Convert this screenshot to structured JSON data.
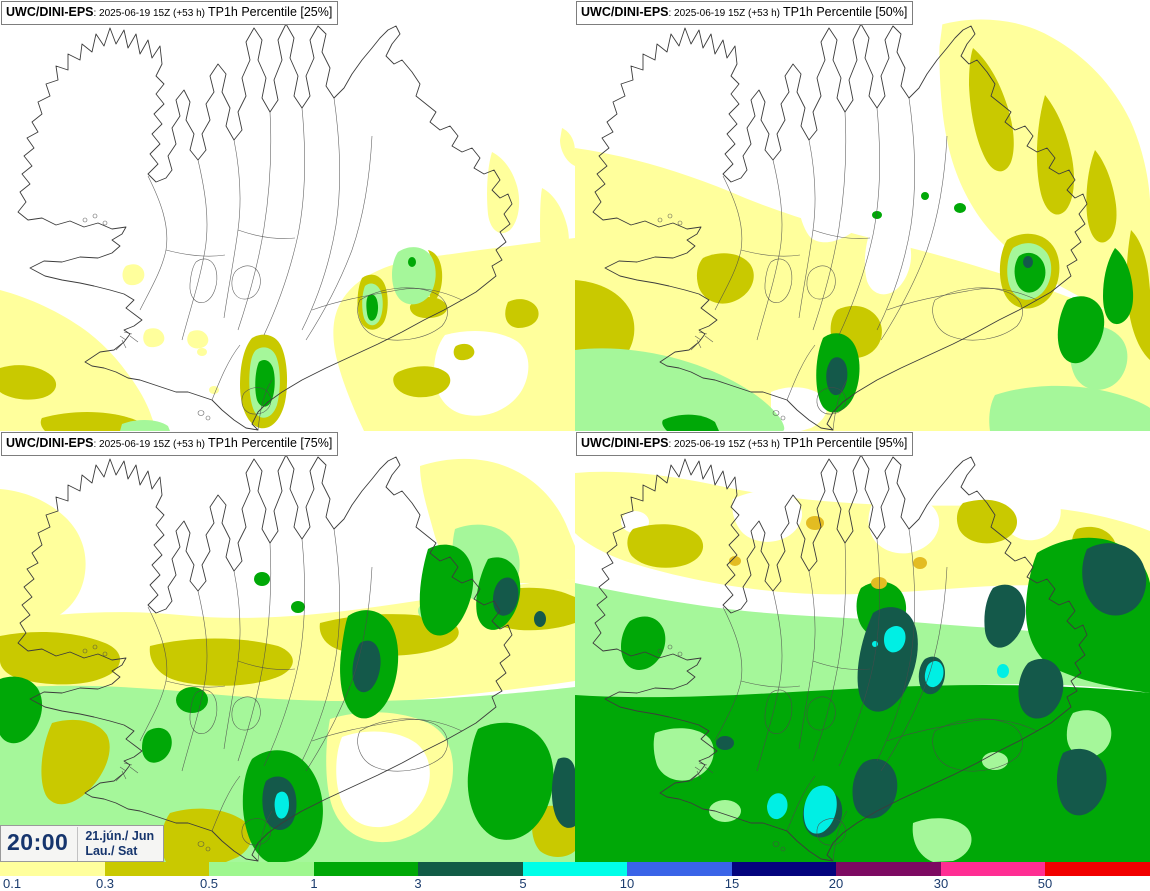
{
  "panels": [
    {
      "model": "UWC/DINI-EPS",
      "run": ": 2025-06-19 15Z (+53 h)",
      "product": "TP1h Percentile [25%]"
    },
    {
      "model": "UWC/DINI-EPS",
      "run": ": 2025-06-19 15Z (+53 h)",
      "product": "TP1h Percentile [50%]"
    },
    {
      "model": "UWC/DINI-EPS",
      "run": ": 2025-06-19 15Z (+53 h)",
      "product": "TP1h Percentile [75%]"
    },
    {
      "model": "UWC/DINI-EPS",
      "run": ": 2025-06-19 15Z (+53 h)",
      "product": "TP1h Percentile [95%]"
    }
  ],
  "timebox": {
    "time": "20:00",
    "date_local": "21.jún./ Jun",
    "date_en": "Lau./ Sat"
  },
  "colorbar": {
    "label_color": "#1b3c6e",
    "stops": [
      {
        "label": "0.1",
        "color": "#FFFF9C"
      },
      {
        "label": "0.3",
        "color": "#C9C900"
      },
      {
        "label": "0.5",
        "color": "#9EF78E"
      },
      {
        "label": "1",
        "color": "#00A807"
      },
      {
        "label": "3",
        "color": "#115C46"
      },
      {
        "label": "5",
        "color": "#00FFE8"
      },
      {
        "label": "10",
        "color": "#3A64E8"
      },
      {
        "label": "15",
        "color": "#04047E"
      },
      {
        "label": "20",
        "color": "#7D0A62"
      },
      {
        "label": "30",
        "color": "#FF2E93"
      },
      {
        "label": "50",
        "color": "#F20000"
      }
    ]
  },
  "palette": {
    "y1": "#FFFF9C",
    "y2": "#C9C900",
    "gd": "#E3BC22",
    "g1": "#A5F79A",
    "g2": "#00A807",
    "g3": "#14594A",
    "cy": "#00EFE4",
    "wh": "#FFFFFF",
    "coast": "#3c3c3c"
  }
}
